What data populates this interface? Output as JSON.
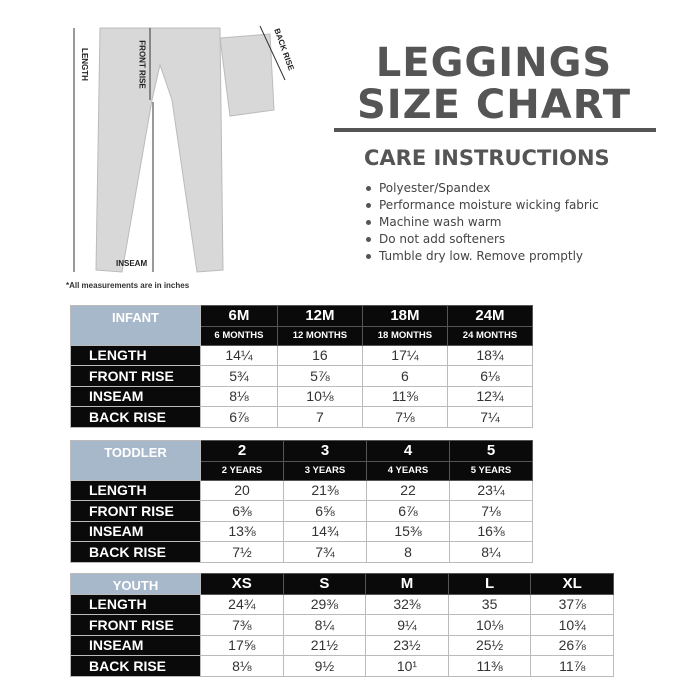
{
  "title": {
    "line1": "LEGGINGS",
    "line2": "SIZE CHART"
  },
  "care": {
    "heading": "CARE INSTRUCTIONS",
    "items": [
      "Polyester/Spandex",
      "Performance moisture wicking fabric",
      "Machine wash warm",
      "Do not add softeners",
      "Tumble dry low. Remove promptly"
    ]
  },
  "diagram": {
    "length": "LENGTH",
    "front_rise": "FRONT RISE",
    "back_rise": "BACK RISE",
    "inseam": "INSEAM"
  },
  "note": "*All measurements are in inches",
  "infant": {
    "group": "INFANT",
    "sizes": [
      "6M",
      "12M",
      "18M",
      "24M"
    ],
    "subs": [
      "6 MONTHS",
      "12 MONTHS",
      "18 MONTHS",
      "24 MONTHS"
    ],
    "rows": [
      {
        "label": "LENGTH",
        "values": [
          "14¼",
          "16",
          "17¼",
          "18¾"
        ]
      },
      {
        "label": "FRONT RISE",
        "values": [
          "5¾",
          "5⅞",
          "6",
          "6⅛"
        ]
      },
      {
        "label": "INSEAM",
        "values": [
          "8⅛",
          "10⅛",
          "11⅜",
          "12¾"
        ]
      },
      {
        "label": "BACK RISE",
        "values": [
          "6⅞",
          "7",
          "7⅛",
          "7¼"
        ]
      }
    ]
  },
  "toddler": {
    "group": "TODDLER",
    "sizes": [
      "2",
      "3",
      "4",
      "5"
    ],
    "subs": [
      "2 YEARS",
      "3 YEARS",
      "4 YEARS",
      "5 YEARS"
    ],
    "rows": [
      {
        "label": "LENGTH",
        "values": [
          "20",
          "21⅜",
          "22",
          "23¼"
        ]
      },
      {
        "label": "FRONT RISE",
        "values": [
          "6⅜",
          "6⅝",
          "6⅞",
          "7⅛"
        ]
      },
      {
        "label": "INSEAM",
        "values": [
          "13⅜",
          "14¾",
          "15⅜",
          "16⅜"
        ]
      },
      {
        "label": "BACK RISE",
        "values": [
          "7½",
          "7¾",
          "8",
          "8¼"
        ]
      }
    ]
  },
  "youth": {
    "group": "YOUTH",
    "sizes": [
      "XS",
      "S",
      "M",
      "L",
      "XL"
    ],
    "rows": [
      {
        "label": "LENGTH",
        "values": [
          "24¾",
          "29⅜",
          "32⅜",
          "35",
          "37⅞"
        ]
      },
      {
        "label": "FRONT RISE",
        "values": [
          "7⅜",
          "8¼",
          "9¼",
          "10⅛",
          "10¾"
        ]
      },
      {
        "label": "INSEAM",
        "values": [
          "17⅝",
          "21½",
          "23½",
          "25½",
          "26⅞"
        ]
      },
      {
        "label": "BACK RISE",
        "values": [
          "8⅛",
          "9½",
          "10¹",
          "11⅜",
          "11⅞"
        ]
      }
    ]
  }
}
